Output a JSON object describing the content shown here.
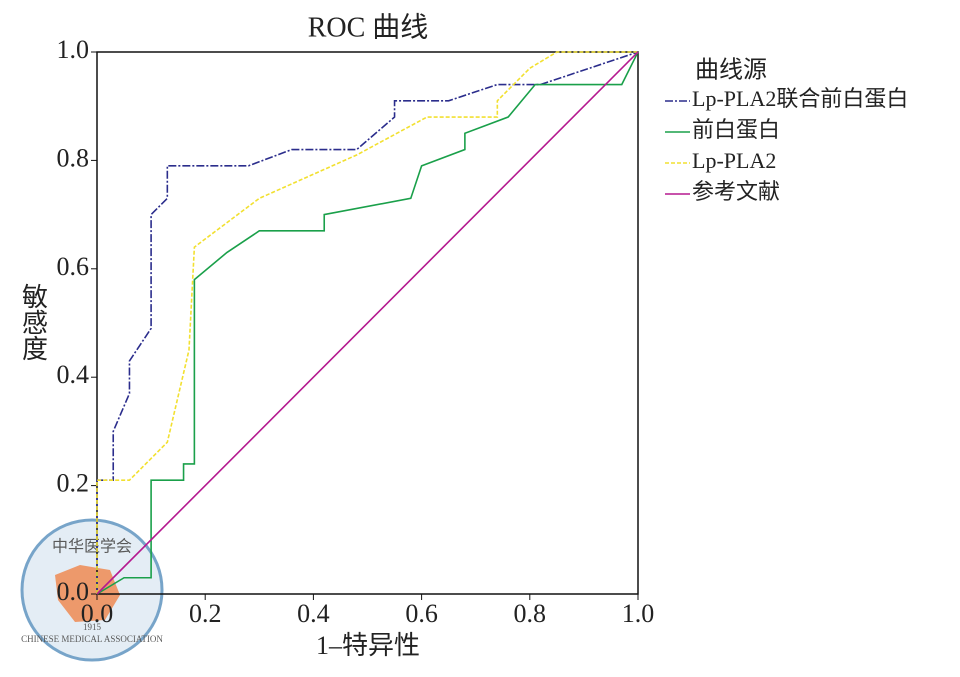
{
  "chart_data": {
    "type": "line",
    "title": "ROC 曲线",
    "x_label": "1–特异性",
    "y_label": "敏感度",
    "legend_title": "曲线源",
    "legend": "right",
    "xlim": [
      0,
      1
    ],
    "ylim": [
      0,
      1
    ],
    "xticks": [
      {
        "value": 0,
        "label": "0.0"
      },
      0.2,
      0.4,
      0.6,
      0.8,
      {
        "value": 1,
        "label": "1.0"
      }
    ],
    "yticks": [
      {
        "value": 0,
        "label": "0.0"
      },
      0.2,
      0.4,
      0.6,
      0.8,
      {
        "value": 1,
        "label": "1.0"
      }
    ],
    "series": [
      {
        "name": "Lp-PLA2联合前白蛋白",
        "color": "#2b2d8c",
        "x": [
          0,
          0,
          0.03,
          0.03,
          0.06,
          0.06,
          0.1,
          0.1,
          0.13,
          0.13,
          0.28,
          0.36,
          0.48,
          0.55,
          0.55,
          0.65,
          0.74,
          0.82,
          1
        ],
        "values": [
          0,
          0.21,
          0.21,
          0.3,
          0.37,
          0.43,
          0.49,
          0.7,
          0.73,
          0.79,
          0.79,
          0.82,
          0.82,
          0.88,
          0.91,
          0.91,
          0.94,
          0.94,
          1
        ]
      },
      {
        "name": "前白蛋白",
        "color": "#1aa04a",
        "x": [
          0,
          0.05,
          0.1,
          0.1,
          0.16,
          0.16,
          0.18,
          0.18,
          0.24,
          0.3,
          0.42,
          0.42,
          0.58,
          0.6,
          0.68,
          0.68,
          0.76,
          0.81,
          0.97,
          1
        ],
        "values": [
          0,
          0.03,
          0.03,
          0.21,
          0.21,
          0.24,
          0.24,
          0.58,
          0.63,
          0.67,
          0.67,
          0.7,
          0.73,
          0.79,
          0.82,
          0.85,
          0.88,
          0.94,
          0.94,
          1
        ]
      },
      {
        "name": "Lp-PLA2",
        "color": "#f2e030",
        "x": [
          0,
          0,
          0.06,
          0.13,
          0.17,
          0.18,
          0.3,
          0.48,
          0.61,
          0.74,
          0.74,
          0.8,
          0.85,
          1
        ],
        "values": [
          0,
          0.21,
          0.21,
          0.28,
          0.45,
          0.64,
          0.73,
          0.81,
          0.88,
          0.88,
          0.91,
          0.97,
          1,
          1
        ]
      },
      {
        "name": "参考文献",
        "color": "#b5198f",
        "x": [
          0,
          1
        ],
        "values": [
          0,
          1
        ]
      }
    ]
  },
  "watermark": {
    "cn": "中华医学会",
    "en": "CHINESE MEDICAL ASSOCIATION",
    "year": "1915"
  }
}
